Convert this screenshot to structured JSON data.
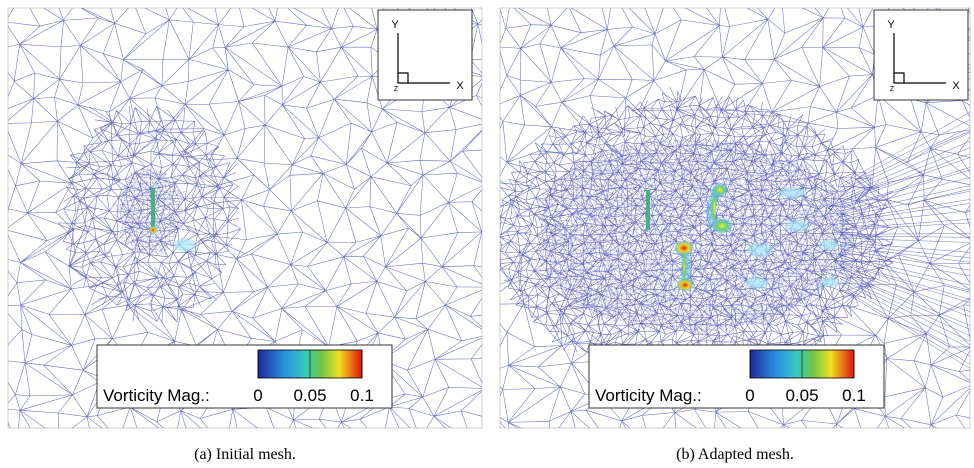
{
  "panels": [
    {
      "caption": "(a)  Initial mesh.",
      "axes": {
        "y": "Y",
        "x": "X",
        "z": "Z"
      },
      "colorbar": {
        "title": "Vorticity Mag.:",
        "ticks": [
          0,
          0.05,
          0.1
        ]
      }
    },
    {
      "caption": "(b)  Adapted mesh.",
      "axes": {
        "y": "Y",
        "x": "X",
        "z": "Z"
      },
      "colorbar": {
        "title": "Vorticity Mag.:",
        "ticks": [
          0,
          0.05,
          0.1
        ]
      }
    }
  ]
}
